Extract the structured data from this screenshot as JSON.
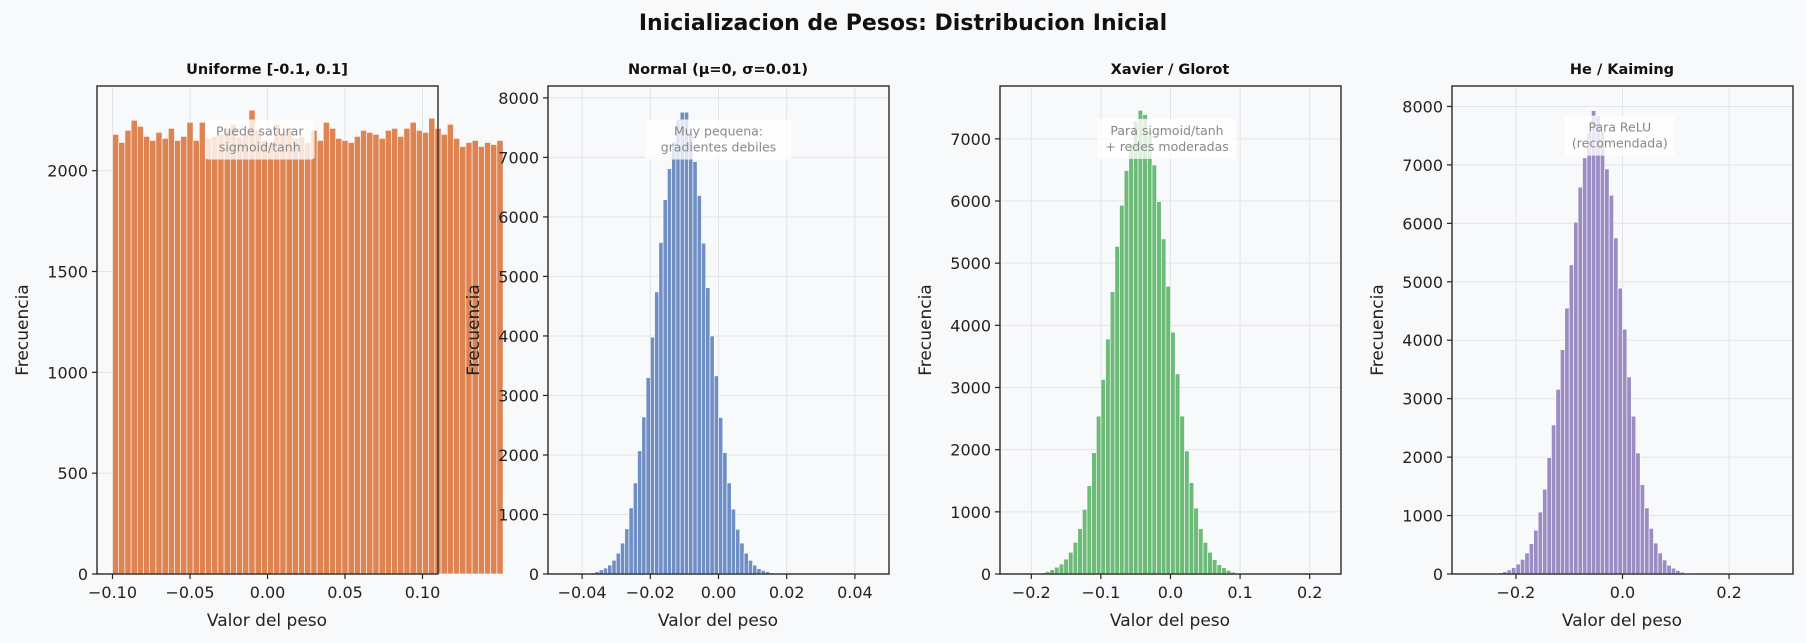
{
  "figure": {
    "title": "Inicializacion de Pesos: Distribucion Inicial"
  },
  "chart_data": [
    {
      "type": "bar",
      "title": "Uniforme [-0.1, 0.1]",
      "xlabel": "Valor del peso",
      "ylabel": "Frecuencia",
      "xlim": [
        -0.11,
        0.11
      ],
      "ylim": [
        0,
        2420
      ],
      "xticks": [
        -0.1,
        -0.05,
        0.0,
        0.05,
        0.1
      ],
      "xtick_labels": [
        "−0.10",
        "−0.05",
        "0.00",
        "0.05",
        "0.10"
      ],
      "yticks": [
        0,
        500,
        1000,
        1500,
        2000
      ],
      "ytick_labels": [
        "0",
        "500",
        "1000",
        "1500",
        "2000"
      ],
      "grid": true,
      "color": "#dd8452",
      "annotation": [
        "Puede saturar",
        "sigmoid/tanh"
      ],
      "annotation_x": -0.005,
      "annotation_y": 2155,
      "bin_start": -0.1,
      "bin_width": 0.004,
      "values": [
        2180,
        2140,
        2200,
        2250,
        2220,
        2170,
        2150,
        2190,
        2160,
        2210,
        2150,
        2170,
        2240,
        2150,
        2240,
        2160,
        2170,
        2180,
        2210,
        2230,
        2170,
        2180,
        2300,
        2200,
        2150,
        2140,
        2230,
        2180,
        2200,
        2160,
        2170,
        2140,
        2200,
        2150,
        2240,
        2210,
        2160,
        2150,
        2140,
        2170,
        2200,
        2190,
        2180,
        2160,
        2200,
        2210,
        2170,
        2210,
        2240,
        2200,
        2190,
        2260,
        2210,
        2180,
        2230,
        2160,
        2120,
        2140,
        2150,
        2120,
        2140,
        2130,
        2150
      ]
    },
    {
      "type": "bar",
      "title": "Normal (μ=0, σ=0.01)",
      "xlabel": "Valor del peso",
      "ylabel": "Frecuencia",
      "xlim": [
        -0.05,
        0.05
      ],
      "ylim": [
        0,
        8200
      ],
      "xticks": [
        -0.04,
        -0.02,
        0.0,
        0.02,
        0.04
      ],
      "xtick_labels": [
        "−0.04",
        "−0.02",
        "0.00",
        "0.02",
        "0.04"
      ],
      "yticks": [
        0,
        1000,
        2000,
        3000,
        4000,
        5000,
        6000,
        7000,
        8000
      ],
      "ytick_labels": [
        "0",
        "1000",
        "2000",
        "3000",
        "4000",
        "5000",
        "6000",
        "7000",
        "8000"
      ],
      "grid": true,
      "color": "#6f8fc4",
      "annotation": [
        "Muy pequena:",
        "gradientes debiles"
      ],
      "annotation_x": 0.0,
      "annotation_y": 7300,
      "bin_start": -0.04,
      "bin_width": 0.00125,
      "values": [
        5,
        10,
        20,
        40,
        70,
        100,
        150,
        230,
        350,
        520,
        760,
        1110,
        1530,
        2070,
        2640,
        3300,
        3980,
        4740,
        5570,
        6290,
        6810,
        7260,
        7640,
        7760,
        7760,
        7390,
        6930,
        6360,
        5560,
        4810,
        4000,
        3330,
        2630,
        2040,
        1530,
        1090,
        750,
        520,
        350,
        230,
        150,
        90,
        60,
        40,
        20,
        10,
        5
      ]
    },
    {
      "type": "bar",
      "title": "Xavier / Glorot",
      "xlabel": "Valor del peso",
      "ylabel": "Frecuencia",
      "xlim": [
        -0.245,
        0.245
      ],
      "ylim": [
        0,
        7850
      ],
      "xticks": [
        -0.2,
        -0.1,
        0.0,
        0.1,
        0.2
      ],
      "xtick_labels": [
        "−0.2",
        "−0.1",
        "0.0",
        "0.1",
        "0.2"
      ],
      "yticks": [
        0,
        1000,
        2000,
        3000,
        4000,
        5000,
        6000,
        7000
      ],
      "ytick_labels": [
        "0",
        "1000",
        "2000",
        "3000",
        "4000",
        "5000",
        "6000",
        "7000"
      ],
      "grid": true,
      "color": "#6dbb78",
      "annotation": [
        "Para sigmoid/tanh",
        "+ redes moderadas"
      ],
      "annotation_x": -0.005,
      "annotation_y": 7000,
      "bin_start": -0.2,
      "bin_width": 0.00667,
      "values": [
        5,
        10,
        20,
        40,
        70,
        110,
        160,
        240,
        350,
        510,
        730,
        1040,
        1420,
        1950,
        2540,
        3130,
        3780,
        4540,
        5270,
        5930,
        6490,
        6930,
        7290,
        7460,
        7390,
        7120,
        6580,
        5990,
        5390,
        4630,
        3890,
        3220,
        2540,
        1980,
        1470,
        1060,
        730,
        510,
        350,
        230,
        150,
        100,
        60,
        30,
        15,
        8,
        4
      ]
    },
    {
      "type": "bar",
      "title": "He / Kaiming",
      "xlabel": "Valor del peso",
      "ylabel": "Frecuencia",
      "xlim": [
        -0.32,
        0.32
      ],
      "ylim": [
        0,
        8350
      ],
      "xticks": [
        -0.2,
        0.0,
        0.2
      ],
      "xtick_labels": [
        "−0.2",
        "0.0",
        "0.2"
      ],
      "yticks": [
        0,
        1000,
        2000,
        3000,
        4000,
        5000,
        6000,
        7000,
        8000
      ],
      "ytick_labels": [
        "0",
        "1000",
        "2000",
        "3000",
        "4000",
        "5000",
        "6000",
        "7000",
        "8000"
      ],
      "grid": true,
      "color": "#9b8dc4",
      "annotation": [
        "Para ReLU",
        "(recomendada)"
      ],
      "annotation_x": -0.005,
      "annotation_y": 7500,
      "bin_start": -0.25,
      "bin_width": 0.00833,
      "values": [
        5,
        10,
        20,
        40,
        70,
        110,
        170,
        250,
        360,
        520,
        750,
        1060,
        1450,
        1990,
        2550,
        3160,
        3840,
        4550,
        5290,
        6020,
        6620,
        7120,
        7560,
        7930,
        7840,
        7580,
        6930,
        6480,
        5750,
        4890,
        4190,
        3370,
        2700,
        2070,
        1530,
        1130,
        780,
        530,
        360,
        240,
        150,
        100,
        60,
        30,
        15,
        8,
        4
      ]
    }
  ]
}
